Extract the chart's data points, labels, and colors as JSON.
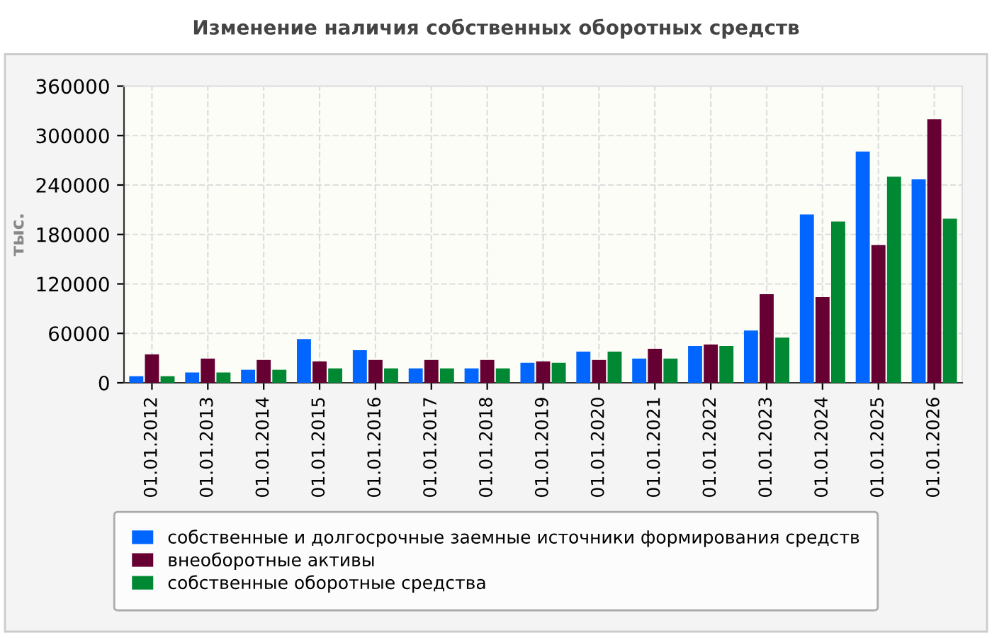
{
  "chart_data": {
    "type": "bar",
    "title": "Изменение наличия собственных оборотных средств",
    "ylabel": "тыс.",
    "categories": [
      "01.01.2012",
      "01.01.2013",
      "01.01.2014",
      "01.01.2015",
      "01.01.2016",
      "01.01.2017",
      "01.01.2018",
      "01.01.2019",
      "01.01.2020",
      "01.01.2021",
      "01.01.2022",
      "01.01.2023",
      "01.01.2024",
      "01.01.2025",
      "01.01.2026"
    ],
    "series": [
      {
        "name": "собственные и долгосрочные заемные источники формирования средств",
        "color": "#0066ff",
        "values": [
          8000,
          12500,
          15800,
          53200,
          39600,
          17500,
          17500,
          24300,
          37900,
          29400,
          44700,
          63400,
          204300,
          280700,
          246800
        ]
      },
      {
        "name": "внеоборотные активы",
        "color": "#660033",
        "values": [
          34500,
          29400,
          27700,
          26000,
          27700,
          27700,
          27700,
          26000,
          27700,
          41300,
          46400,
          107500,
          104100,
          167000,
          319800
        ]
      },
      {
        "name": "собственные оборотные средства",
        "color": "#008833",
        "values": [
          8000,
          12500,
          15800,
          17500,
          17500,
          17500,
          17500,
          24300,
          37900,
          29400,
          44700,
          54900,
          195800,
          250200,
          199200
        ]
      }
    ],
    "ylim": [
      0,
      360000
    ],
    "yticks": [
      0,
      60000,
      120000,
      180000,
      240000,
      300000,
      360000
    ],
    "grid": true,
    "legend": "bottom"
  }
}
